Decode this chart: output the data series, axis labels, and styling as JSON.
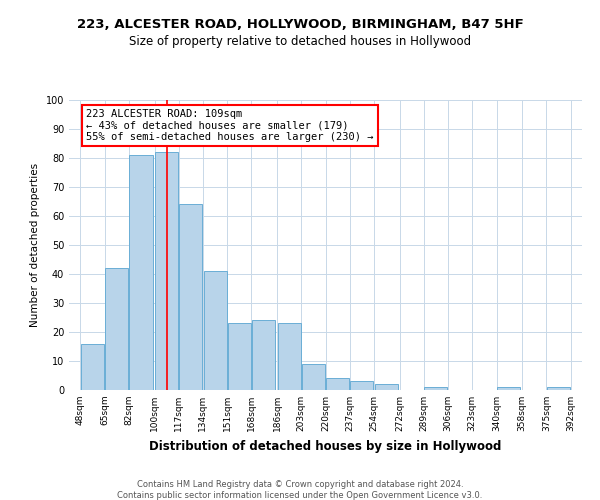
{
  "title": "223, ALCESTER ROAD, HOLLYWOOD, BIRMINGHAM, B47 5HF",
  "subtitle": "Size of property relative to detached houses in Hollywood",
  "xlabel": "Distribution of detached houses by size in Hollywood",
  "ylabel": "Number of detached properties",
  "footer_line1": "Contains HM Land Registry data © Crown copyright and database right 2024.",
  "footer_line2": "Contains public sector information licensed under the Open Government Licence v3.0.",
  "annotation_line1": "223 ALCESTER ROAD: 109sqm",
  "annotation_line2": "← 43% of detached houses are smaller (179)",
  "annotation_line3": "55% of semi-detached houses are larger (230) →",
  "bar_left_edges": [
    48,
    65,
    82,
    100,
    117,
    134,
    151,
    168,
    186,
    203,
    220,
    237,
    254,
    272,
    289,
    306,
    323,
    340,
    358,
    375
  ],
  "bar_heights": [
    16,
    42,
    81,
    82,
    64,
    41,
    23,
    24,
    23,
    9,
    4,
    3,
    2,
    0,
    1,
    0,
    0,
    1,
    0,
    1
  ],
  "bar_widths": [
    17,
    17,
    17,
    17,
    17,
    17,
    17,
    17,
    17,
    17,
    17,
    17,
    17,
    17,
    17,
    17,
    17,
    17,
    17,
    17
  ],
  "tick_labels": [
    "48sqm",
    "65sqm",
    "82sqm",
    "100sqm",
    "117sqm",
    "134sqm",
    "151sqm",
    "168sqm",
    "186sqm",
    "203sqm",
    "220sqm",
    "237sqm",
    "254sqm",
    "272sqm",
    "289sqm",
    "306sqm",
    "323sqm",
    "340sqm",
    "358sqm",
    "375sqm",
    "392sqm"
  ],
  "tick_positions": [
    48,
    65,
    82,
    100,
    117,
    134,
    151,
    168,
    186,
    203,
    220,
    237,
    254,
    272,
    289,
    306,
    323,
    340,
    358,
    375,
    392
  ],
  "bar_color": "#b8d4ea",
  "bar_edge_color": "#6aaed6",
  "red_line_x": 109,
  "ylim": [
    0,
    100
  ],
  "xlim": [
    40,
    400
  ],
  "background_color": "#ffffff",
  "grid_color": "#c8d8e8",
  "title_fontsize": 9.5,
  "subtitle_fontsize": 8.5,
  "xlabel_fontsize": 8.5,
  "ylabel_fontsize": 7.5,
  "tick_fontsize": 6.5,
  "footer_fontsize": 6.0,
  "annotation_fontsize": 7.5
}
